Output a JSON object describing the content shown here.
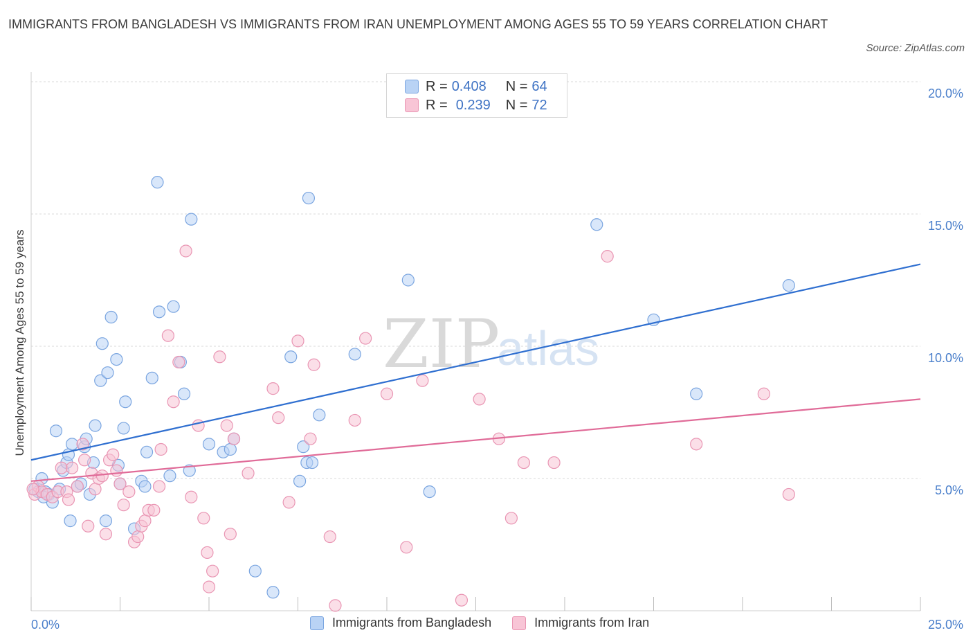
{
  "title": "IMMIGRANTS FROM BANGLADESH VS IMMIGRANTS FROM IRAN UNEMPLOYMENT AMONG AGES 55 TO 59 YEARS CORRELATION CHART",
  "source": "Source: ZipAtlas.com",
  "watermark": {
    "zip": "ZIP",
    "atlas": "atlas"
  },
  "legend_top": {
    "rows": [
      {
        "r_label": "R = ",
        "r_value": "0.408",
        "n_label": "N = ",
        "n_value": "64"
      },
      {
        "r_label": "R = ",
        "r_value": "0.239",
        "n_label": "N = ",
        "n_value": "72"
      }
    ]
  },
  "legend_bottom": [
    {
      "label": "Immigrants from Bangladesh"
    },
    {
      "label": "Immigrants from Iran"
    }
  ],
  "colors": {
    "blue_fill": "#b9d3f5",
    "blue_stroke": "#7aa5e0",
    "blue_line": "#2f6fd0",
    "pink_fill": "#f8c5d6",
    "pink_stroke": "#e995b3",
    "pink_line": "#e06b98",
    "tick_text": "#4a7fcb",
    "grid": "#d9d9d9"
  },
  "chart_data": {
    "type": "scatter",
    "title": "IMMIGRANTS FROM BANGLADESH VS IMMIGRANTS FROM IRAN UNEMPLOYMENT AMONG AGES 55 TO 59 YEARS CORRELATION CHART",
    "xlabel": "",
    "ylabel": "Unemployment Among Ages 55 to 59 years",
    "xlim": [
      0,
      25
    ],
    "ylim": [
      0,
      20
    ],
    "x_tick_labels": [
      "0.0%",
      "25.0%"
    ],
    "y_ticks": [
      5,
      10,
      15,
      20
    ],
    "y_tick_labels": [
      "5.0%",
      "10.0%",
      "15.0%",
      "20.0%"
    ],
    "grid": true,
    "legend_position": "top-center",
    "series": [
      {
        "name": "Immigrants from Bangladesh",
        "R": 0.408,
        "N": 64,
        "trend": {
          "x": [
            0,
            25
          ],
          "y": [
            5.7,
            13.1
          ]
        },
        "points": [
          [
            0.1,
            4.6
          ],
          [
            0.2,
            4.5
          ],
          [
            0.3,
            5.0
          ],
          [
            0.4,
            4.5
          ],
          [
            0.5,
            4.4
          ],
          [
            0.6,
            4.1
          ],
          [
            0.7,
            6.8
          ],
          [
            0.8,
            4.6
          ],
          [
            0.9,
            5.3
          ],
          [
            1.0,
            5.6
          ],
          [
            1.05,
            5.9
          ],
          [
            1.1,
            3.4
          ],
          [
            1.15,
            6.3
          ],
          [
            1.3,
            4.7
          ],
          [
            1.4,
            4.8
          ],
          [
            1.5,
            6.2
          ],
          [
            1.55,
            6.5
          ],
          [
            1.65,
            4.4
          ],
          [
            1.75,
            5.6
          ],
          [
            1.8,
            7.0
          ],
          [
            1.95,
            8.7
          ],
          [
            2.0,
            10.1
          ],
          [
            2.1,
            3.4
          ],
          [
            2.15,
            9.0
          ],
          [
            2.25,
            11.1
          ],
          [
            2.4,
            9.5
          ],
          [
            2.45,
            5.5
          ],
          [
            2.5,
            4.8
          ],
          [
            2.6,
            6.9
          ],
          [
            2.65,
            7.9
          ],
          [
            2.9,
            3.1
          ],
          [
            3.1,
            4.9
          ],
          [
            3.2,
            4.7
          ],
          [
            3.25,
            6.0
          ],
          [
            3.4,
            8.8
          ],
          [
            3.55,
            16.2
          ],
          [
            3.6,
            11.3
          ],
          [
            3.9,
            5.1
          ],
          [
            4.0,
            11.5
          ],
          [
            4.2,
            9.4
          ],
          [
            4.3,
            8.2
          ],
          [
            4.45,
            5.3
          ],
          [
            4.5,
            14.8
          ],
          [
            5.0,
            6.3
          ],
          [
            5.4,
            6.0
          ],
          [
            5.6,
            6.1
          ],
          [
            5.7,
            6.5
          ],
          [
            6.3,
            1.5
          ],
          [
            6.8,
            0.7
          ],
          [
            7.3,
            9.6
          ],
          [
            7.55,
            4.9
          ],
          [
            7.65,
            6.2
          ],
          [
            7.75,
            5.6
          ],
          [
            7.8,
            15.6
          ],
          [
            7.9,
            5.6
          ],
          [
            8.1,
            7.4
          ],
          [
            9.1,
            9.7
          ],
          [
            10.6,
            12.5
          ],
          [
            11.2,
            4.5
          ],
          [
            15.9,
            14.6
          ],
          [
            17.5,
            11.0
          ],
          [
            18.7,
            8.2
          ],
          [
            21.3,
            12.3
          ],
          [
            0.35,
            4.3
          ]
        ]
      },
      {
        "name": "Immigrants from Iran",
        "R": 0.239,
        "N": 72,
        "trend": {
          "x": [
            0,
            25
          ],
          "y": [
            4.9,
            8.0
          ]
        },
        "points": [
          [
            0.1,
            4.4
          ],
          [
            0.2,
            4.7
          ],
          [
            0.3,
            4.5
          ],
          [
            0.45,
            4.4
          ],
          [
            0.6,
            4.3
          ],
          [
            0.75,
            4.5
          ],
          [
            0.85,
            5.4
          ],
          [
            1.0,
            4.5
          ],
          [
            1.05,
            4.2
          ],
          [
            1.15,
            5.4
          ],
          [
            1.3,
            4.7
          ],
          [
            1.45,
            6.3
          ],
          [
            1.5,
            5.7
          ],
          [
            1.6,
            3.2
          ],
          [
            1.7,
            5.2
          ],
          [
            1.8,
            4.6
          ],
          [
            1.9,
            5.0
          ],
          [
            2.0,
            5.1
          ],
          [
            2.1,
            2.9
          ],
          [
            2.2,
            5.7
          ],
          [
            2.3,
            5.9
          ],
          [
            2.4,
            5.3
          ],
          [
            2.5,
            4.8
          ],
          [
            2.6,
            4.0
          ],
          [
            2.75,
            4.5
          ],
          [
            2.9,
            2.6
          ],
          [
            3.0,
            2.8
          ],
          [
            3.1,
            3.2
          ],
          [
            3.2,
            3.4
          ],
          [
            3.3,
            3.8
          ],
          [
            3.45,
            3.8
          ],
          [
            3.6,
            4.7
          ],
          [
            3.65,
            6.1
          ],
          [
            3.85,
            10.4
          ],
          [
            4.0,
            7.9
          ],
          [
            4.15,
            9.4
          ],
          [
            4.35,
            13.6
          ],
          [
            4.5,
            4.3
          ],
          [
            4.7,
            7.0
          ],
          [
            4.85,
            3.5
          ],
          [
            4.95,
            2.2
          ],
          [
            5.0,
            0.9
          ],
          [
            5.1,
            1.5
          ],
          [
            5.3,
            9.6
          ],
          [
            5.5,
            7.0
          ],
          [
            5.6,
            2.9
          ],
          [
            5.7,
            6.5
          ],
          [
            6.1,
            5.2
          ],
          [
            6.8,
            8.4
          ],
          [
            6.95,
            7.3
          ],
          [
            7.25,
            4.1
          ],
          [
            7.5,
            10.2
          ],
          [
            7.85,
            6.5
          ],
          [
            7.95,
            9.3
          ],
          [
            8.4,
            2.8
          ],
          [
            8.55,
            0.2
          ],
          [
            9.1,
            7.2
          ],
          [
            9.4,
            10.3
          ],
          [
            10.0,
            8.2
          ],
          [
            10.55,
            2.4
          ],
          [
            11.0,
            8.7
          ],
          [
            12.1,
            0.4
          ],
          [
            12.6,
            8.0
          ],
          [
            13.15,
            6.5
          ],
          [
            13.5,
            3.5
          ],
          [
            13.85,
            5.6
          ],
          [
            14.7,
            5.6
          ],
          [
            16.2,
            13.4
          ],
          [
            18.7,
            6.3
          ],
          [
            20.6,
            8.2
          ],
          [
            21.3,
            4.4
          ],
          [
            0.05,
            4.6
          ]
        ]
      }
    ]
  }
}
